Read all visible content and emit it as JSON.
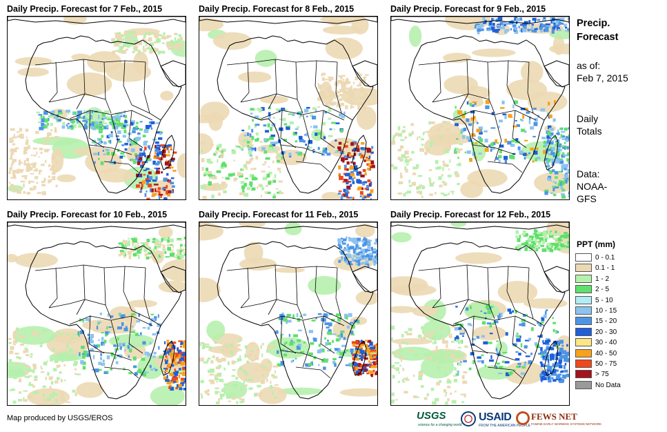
{
  "panels": [
    {
      "title": "Daily Precip. Forecast for 7 Feb., 2015",
      "date": "7 Feb., 2015"
    },
    {
      "title": "Daily Precip. Forecast for 8 Feb., 2015",
      "date": "8 Feb., 2015"
    },
    {
      "title": "Daily Precip. Forecast for 9 Feb., 2015",
      "date": "9 Feb., 2015"
    },
    {
      "title": "Daily Precip. Forecast for 10 Feb., 2015",
      "date": "10 Feb., 2015"
    },
    {
      "title": "Daily Precip. Forecast for 11 Feb., 2015",
      "date": "11 Feb., 2015"
    },
    {
      "title": "Daily Precip. Forecast for 12 Feb., 2015",
      "date": "12 Feb., 2015"
    }
  ],
  "sidebar": {
    "heading_line1": "Precip.",
    "heading_line2": "Forecast",
    "asof_line1": "as of:",
    "asof_line2": "Feb 7, 2015",
    "totals_line1": "Daily",
    "totals_line2": "Totals",
    "data_line1": "Data:",
    "data_line2": "NOAA-",
    "data_line3": "GFS"
  },
  "legend": {
    "title": "PPT (mm)",
    "items": [
      {
        "label": "0 - 0.1",
        "color": "#ffffff"
      },
      {
        "label": "0.1 - 1",
        "color": "#ecd9b4"
      },
      {
        "label": "1 - 2",
        "color": "#b6f0ad"
      },
      {
        "label": "2 - 5",
        "color": "#5fe06b"
      },
      {
        "label": "5 - 10",
        "color": "#b3ecf2"
      },
      {
        "label": "10 - 15",
        "color": "#8cc3ef"
      },
      {
        "label": "15 - 20",
        "color": "#4c95e6"
      },
      {
        "label": "20 - 30",
        "color": "#1f5fdb"
      },
      {
        "label": "30 - 40",
        "color": "#fde683"
      },
      {
        "label": "40 - 50",
        "color": "#f7a21a"
      },
      {
        "label": "50 - 75",
        "color": "#f0471c"
      },
      {
        "label": "> 75",
        "color": "#a3141d"
      },
      {
        "label": "No Data",
        "color": "#9a9a9a"
      }
    ]
  },
  "footer": {
    "credit": "Map produced by USGS/EROS",
    "logo_usgs": "USGS",
    "logo_usgs_tagline": "science for a changing world",
    "logo_usaid": "USAID",
    "logo_usaid_tagline": "FROM THE AMERICAN PEOPLE",
    "logo_fews": "FEWS NET",
    "logo_fews_tagline": "FAMINE EARLY WARNING SYSTEMS NETWORK"
  }
}
